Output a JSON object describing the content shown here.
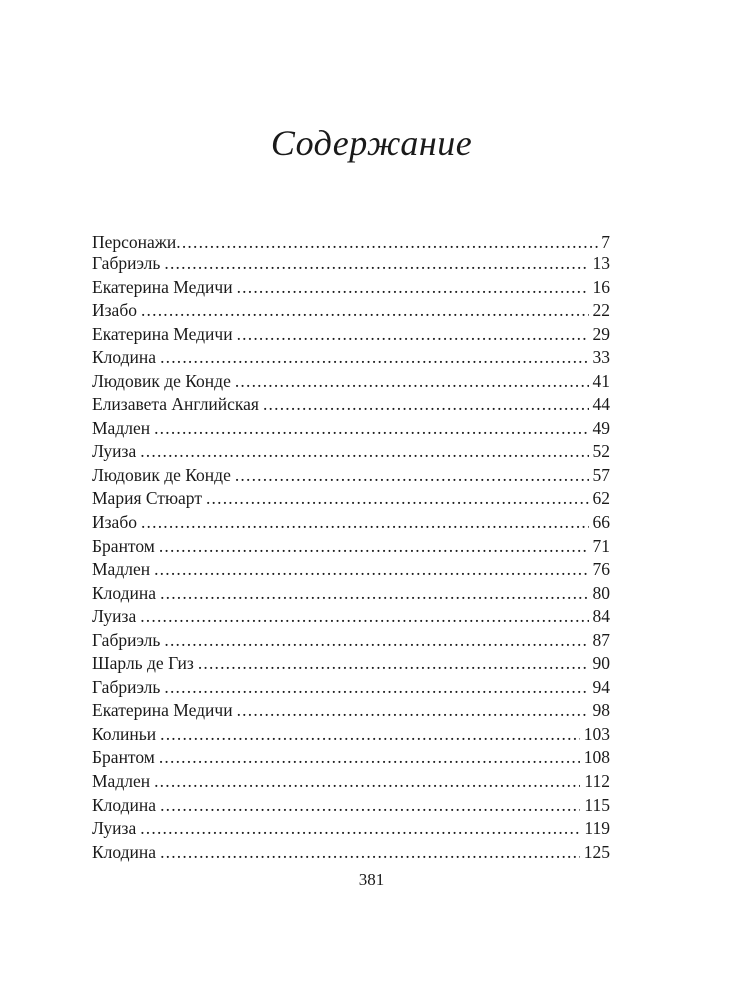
{
  "title": "Содержание",
  "intro": {
    "label": "Персонажи",
    "page": "7"
  },
  "entries": [
    {
      "label": "Габриэль",
      "page": "13"
    },
    {
      "label": "Екатерина Медичи",
      "page": "16"
    },
    {
      "label": "Изабо",
      "page": "22"
    },
    {
      "label": "Екатерина Медичи",
      "page": "29"
    },
    {
      "label": "Клодина",
      "page": "33"
    },
    {
      "label": "Людовик де Конде",
      "page": "41"
    },
    {
      "label": "Елизавета Английская",
      "page": "44"
    },
    {
      "label": "Мадлен",
      "page": "49"
    },
    {
      "label": "Луиза",
      "page": "52"
    },
    {
      "label": "Людовик де Конде",
      "page": "57"
    },
    {
      "label": "Мария Стюарт",
      "page": "62"
    },
    {
      "label": "Изабо",
      "page": "66"
    },
    {
      "label": "Брантом",
      "page": "71"
    },
    {
      "label": "Мадлен",
      "page": "76"
    },
    {
      "label": "Клодина",
      "page": "80"
    },
    {
      "label": "Луиза",
      "page": "84"
    },
    {
      "label": "Габриэль",
      "page": "87"
    },
    {
      "label": "Шарль де Гиз",
      "page": "90"
    },
    {
      "label": "Габриэль",
      "page": "94"
    },
    {
      "label": "Екатерина Медичи",
      "page": "98"
    },
    {
      "label": "Колиньи",
      "page": "103"
    },
    {
      "label": "Брантом",
      "page": "108"
    },
    {
      "label": "Мадлен",
      "page": "112"
    },
    {
      "label": "Клодина",
      "page": "115"
    },
    {
      "label": "Луиза",
      "page": "119"
    },
    {
      "label": "Клодина",
      "page": "125"
    }
  ],
  "page_number": "381"
}
